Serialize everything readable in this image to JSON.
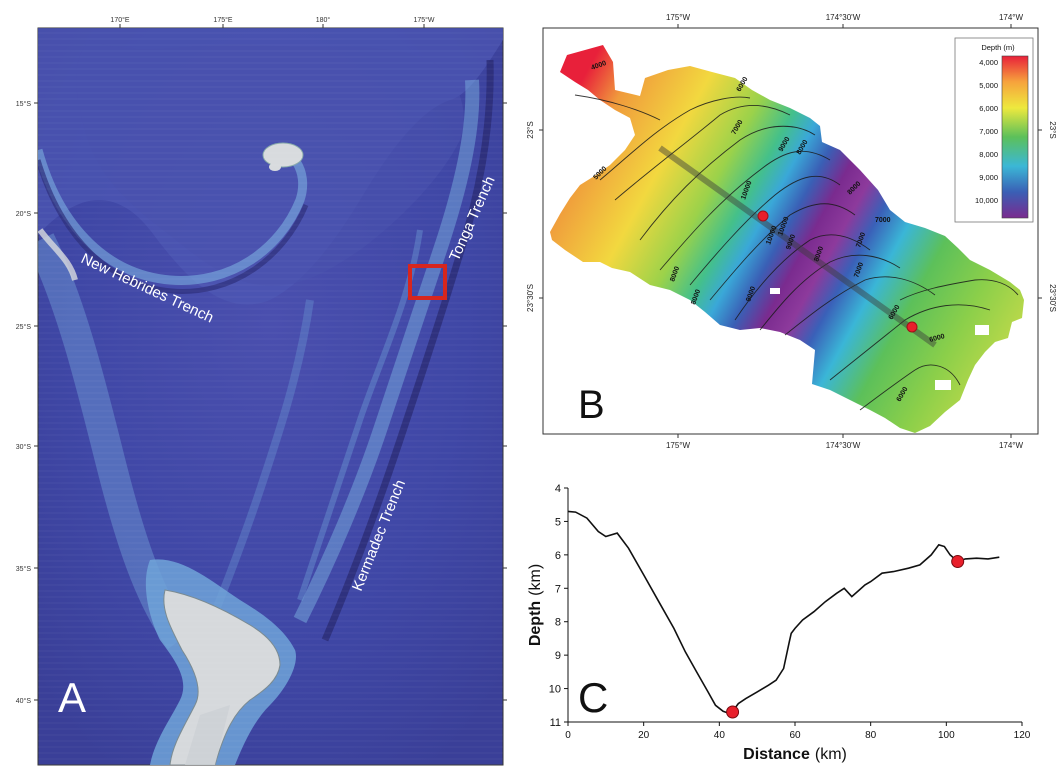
{
  "panelA": {
    "label": "A",
    "lon_ticks": [
      "170°E",
      "175°E",
      "180°",
      "175°W"
    ],
    "lat_ticks": [
      "15°S",
      "20°S",
      "25°S",
      "30°S",
      "35°S",
      "40°S"
    ],
    "feature_labels": {
      "new_hebrides": "New Hebrides Trench",
      "tonga": "Tonga Trench",
      "kermadec": "Kermadec Trench"
    },
    "colors": {
      "ocean_deep": "#3d3f9c",
      "ocean_shelf": "#6fa3d8",
      "land": "#d6d9dc",
      "box": "#d7261e"
    }
  },
  "panelB": {
    "label": "B",
    "lon_ticks": [
      "175°W",
      "174°30'W",
      "174°W"
    ],
    "lat_ticks": [
      "23°S",
      "23°30'S"
    ],
    "legend": {
      "title": "Depth (m)",
      "ticks": [
        "4,000",
        "5,000",
        "6,000",
        "7,000",
        "8,000",
        "9,000",
        "10,000"
      ],
      "colors": [
        "#e8203a",
        "#f6a33c",
        "#eee93e",
        "#5cc05a",
        "#3bb7d6",
        "#3a5fb5",
        "#7a2b8f"
      ]
    },
    "contour_labels": [
      "4000",
      "5000",
      "6000",
      "7000",
      "8000",
      "9000",
      "10000",
      "10000",
      "9000",
      "8000",
      "7000",
      "7000",
      "8000",
      "8000",
      "7000",
      "6000",
      "6000",
      "6000",
      "8000",
      "9000",
      "10000"
    ],
    "profile_endpoint_color": "#e81f2b"
  },
  "panelC": {
    "label": "C",
    "xlabel": "Distance",
    "xunit": "(km)",
    "ylabel": "Depth",
    "yunit": "(km)",
    "x_ticks": [
      "0",
      "20",
      "40",
      "60",
      "80",
      "100",
      "120"
    ],
    "y_ticks": [
      "4",
      "5",
      "6",
      "7",
      "8",
      "9",
      "10",
      "11"
    ]
  },
  "chart_data": {
    "type": "line",
    "title": "",
    "xlabel": "Distance (km)",
    "ylabel": "Depth (km)",
    "xlim": [
      0,
      120
    ],
    "ylim": [
      4,
      11
    ],
    "y_inverted": true,
    "grid": false,
    "series": [
      {
        "x": [
          0,
          2,
          5,
          8,
          10,
          13,
          16,
          20,
          24,
          28,
          31,
          34,
          37,
          39,
          41,
          42,
          43.5,
          45,
          47,
          50,
          53,
          55,
          57,
          58.5,
          59,
          60,
          62,
          65,
          68,
          71,
          73,
          75,
          77,
          78.5,
          80,
          83,
          86,
          90,
          93,
          96,
          98,
          99.5,
          101,
          103,
          105,
          108,
          111,
          114
        ],
        "y": [
          4.7,
          4.72,
          4.9,
          5.3,
          5.45,
          5.35,
          5.8,
          6.6,
          7.4,
          8.2,
          8.9,
          9.5,
          10.1,
          10.5,
          10.68,
          10.72,
          10.68,
          10.45,
          10.3,
          10.1,
          9.9,
          9.75,
          9.4,
          8.6,
          8.35,
          8.2,
          7.95,
          7.7,
          7.4,
          7.15,
          7.0,
          7.25,
          7.05,
          6.9,
          6.8,
          6.55,
          6.5,
          6.4,
          6.3,
          6.0,
          5.7,
          5.75,
          6.0,
          6.2,
          6.12,
          6.1,
          6.12,
          6.07
        ]
      }
    ],
    "markers": [
      {
        "x": 43.5,
        "y": 10.7,
        "color": "#e81f2b"
      },
      {
        "x": 103,
        "y": 6.2,
        "color": "#e81f2b"
      }
    ]
  }
}
